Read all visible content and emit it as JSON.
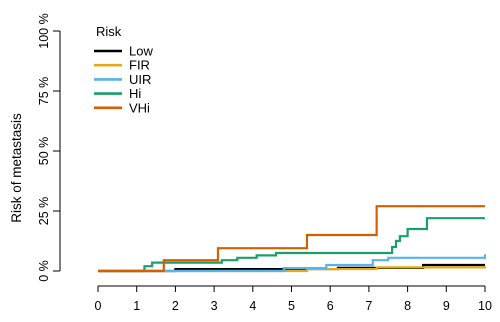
{
  "chart_data": {
    "type": "line",
    "step": true,
    "ylabel": "Risk of metastasis",
    "xlabel": "",
    "xlim": [
      0,
      10
    ],
    "ylim": [
      0,
      100
    ],
    "x_ticks": [
      "0",
      "1",
      "2",
      "3",
      "4",
      "5",
      "6",
      "7",
      "8",
      "9",
      "10"
    ],
    "y_ticks": [
      {
        "value": 0,
        "label": "0 %"
      },
      {
        "value": 25,
        "label": "25 %"
      },
      {
        "value": 50,
        "label": "50 %"
      },
      {
        "value": 75,
        "label": "75 %"
      },
      {
        "value": 100,
        "label": "100 %"
      }
    ],
    "legend": {
      "title": "Risk",
      "position": "top-left"
    },
    "series": [
      {
        "name": "Low",
        "color": "#000000",
        "points": [
          [
            0,
            0
          ],
          [
            2.0,
            0.8
          ],
          [
            6.2,
            1.3
          ],
          [
            8.4,
            2.5
          ],
          [
            10,
            2.5
          ]
        ]
      },
      {
        "name": "FIR",
        "color": "#E6A817",
        "points": [
          [
            0,
            0
          ],
          [
            5.4,
            0.8
          ],
          [
            7.2,
            1.5
          ],
          [
            10,
            2.0
          ]
        ]
      },
      {
        "name": "UIR",
        "color": "#56B4E9",
        "points": [
          [
            0,
            0
          ],
          [
            4.8,
            1.2
          ],
          [
            5.9,
            2.5
          ],
          [
            7.1,
            4.5
          ],
          [
            7.5,
            5.5
          ],
          [
            10,
            7.0
          ]
        ]
      },
      {
        "name": "Hi",
        "color": "#1A9E6B",
        "points": [
          [
            0,
            0
          ],
          [
            1.2,
            2.0
          ],
          [
            1.4,
            3.5
          ],
          [
            3.2,
            4.5
          ],
          [
            3.6,
            5.5
          ],
          [
            4.1,
            6.5
          ],
          [
            4.6,
            7.5
          ],
          [
            7.6,
            10.0
          ],
          [
            7.7,
            12.5
          ],
          [
            7.8,
            14.5
          ],
          [
            8.0,
            17.5
          ],
          [
            8.5,
            22.0
          ],
          [
            10,
            22.0
          ]
        ]
      },
      {
        "name": "VHi",
        "color": "#D55E00",
        "points": [
          [
            0,
            0
          ],
          [
            1.7,
            4.5
          ],
          [
            3.1,
            9.5
          ],
          [
            5.4,
            15.0
          ],
          [
            7.2,
            27.0
          ],
          [
            10,
            27.0
          ]
        ]
      }
    ]
  }
}
